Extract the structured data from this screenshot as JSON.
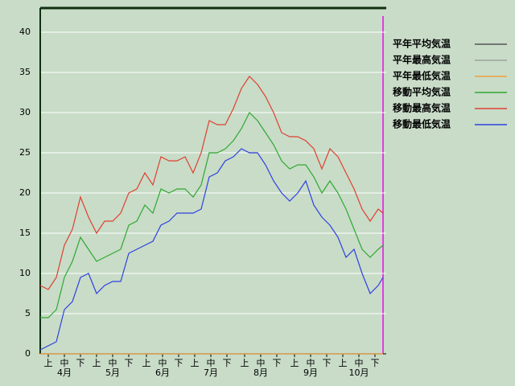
{
  "chart_data": {
    "type": "line",
    "x": [
      0,
      5,
      10,
      15,
      20,
      25,
      30,
      35,
      40,
      45,
      50,
      55,
      60,
      65,
      70,
      75,
      80,
      85,
      90,
      95,
      100,
      105,
      110,
      115,
      120,
      125,
      130,
      135,
      140,
      145,
      150,
      155,
      160,
      165,
      170,
      175,
      180,
      185,
      190,
      195,
      200,
      205,
      210,
      213
    ],
    "series": [
      {
        "name": "平年平均気温",
        "color": "#555555",
        "values": [
          0,
          0,
          0,
          0,
          0,
          0,
          0,
          0,
          0,
          0,
          0,
          0,
          0,
          0,
          0,
          0,
          0,
          0,
          0,
          0,
          0,
          0,
          0,
          0,
          0,
          0,
          0,
          0,
          0,
          0,
          0,
          0,
          0,
          0,
          0,
          0,
          0,
          0,
          0,
          0,
          0,
          0,
          0,
          0
        ]
      },
      {
        "name": "平年最高気温",
        "color": "#a0a0a0",
        "values": [
          0,
          0,
          0,
          0,
          0,
          0,
          0,
          0,
          0,
          0,
          0,
          0,
          0,
          0,
          0,
          0,
          0,
          0,
          0,
          0,
          0,
          0,
          0,
          0,
          0,
          0,
          0,
          0,
          0,
          0,
          0,
          0,
          0,
          0,
          0,
          0,
          0,
          0,
          0,
          0,
          0,
          0,
          0,
          0
        ]
      },
      {
        "name": "平年最低気温",
        "color": "#f0a040",
        "values": [
          0,
          0,
          0,
          0,
          0,
          0,
          0,
          0,
          0,
          0,
          0,
          0,
          0,
          0,
          0,
          0,
          0,
          0,
          0,
          0,
          0,
          0,
          0,
          0,
          0,
          0,
          0,
          0,
          0,
          0,
          0,
          0,
          0,
          0,
          0,
          0,
          0,
          0,
          0,
          0,
          0,
          0,
          0,
          0
        ]
      },
      {
        "name": "移動平均気温",
        "color": "#30a830",
        "values": [
          4.5,
          4.5,
          5.5,
          9.5,
          11.5,
          14.5,
          13,
          11.5,
          12,
          12.5,
          13,
          16,
          16.5,
          18.5,
          17.5,
          20.5,
          20,
          20.5,
          20.5,
          19.5,
          21,
          25,
          25,
          25.5,
          26.5,
          28,
          30,
          29,
          27.5,
          26,
          24,
          23,
          23.5,
          23.5,
          22,
          20,
          21.5,
          20,
          18,
          15.5,
          13,
          12,
          13,
          13.5
        ]
      },
      {
        "name": "移動最高気温",
        "color": "#e04030",
        "values": [
          8.5,
          8,
          9.5,
          13.5,
          15.5,
          19.5,
          17,
          15,
          16.5,
          16.5,
          17.5,
          20,
          20.5,
          22.5,
          21,
          24.5,
          24,
          24,
          24.5,
          22.5,
          25,
          29,
          28.5,
          28.5,
          30.5,
          33,
          34.5,
          33.5,
          32,
          30,
          27.5,
          27,
          27,
          26.5,
          25.5,
          23,
          25.5,
          24.5,
          22.5,
          20.5,
          18,
          16.5,
          18,
          17.5
        ]
      },
      {
        "name": "移動最低気温",
        "color": "#3040e0",
        "values": [
          0.5,
          1,
          1.5,
          5.5,
          6.5,
          9.5,
          10,
          7.5,
          8.5,
          9,
          9,
          12.5,
          13,
          13.5,
          14,
          16,
          16.5,
          17.5,
          17.5,
          17.5,
          18,
          22,
          22.5,
          24,
          24.5,
          25.5,
          25,
          25,
          23.5,
          21.5,
          20,
          19,
          20,
          21.5,
          18.5,
          17,
          16,
          14.5,
          12,
          13,
          10,
          7.5,
          8.5,
          9.5
        ]
      }
    ],
    "xlim": [
      0,
      215
    ],
    "xticks": [
      {
        "value": 5,
        "label": "上"
      },
      {
        "value": 15,
        "label": "中"
      },
      {
        "value": 25,
        "label": "下"
      },
      {
        "value": 35,
        "label": "上"
      },
      {
        "value": 45,
        "label": "中"
      },
      {
        "value": 55,
        "label": "下"
      },
      {
        "value": 66,
        "label": "上"
      },
      {
        "value": 76,
        "label": "中"
      },
      {
        "value": 86,
        "label": "下"
      },
      {
        "value": 96,
        "label": "上"
      },
      {
        "value": 106,
        "label": "中"
      },
      {
        "value": 116,
        "label": "下"
      },
      {
        "value": 127,
        "label": "上"
      },
      {
        "value": 137,
        "label": "中"
      },
      {
        "value": 147,
        "label": "下"
      },
      {
        "value": 158,
        "label": "上"
      },
      {
        "value": 168,
        "label": "中"
      },
      {
        "value": 178,
        "label": "下"
      },
      {
        "value": 188,
        "label": "上"
      },
      {
        "value": 198,
        "label": "中"
      },
      {
        "value": 208,
        "label": "下"
      }
    ],
    "month_labels": [
      {
        "value": 15,
        "label": "4月"
      },
      {
        "value": 45,
        "label": "5月"
      },
      {
        "value": 76,
        "label": "6月"
      },
      {
        "value": 106,
        "label": "7月"
      },
      {
        "value": 137,
        "label": "8月"
      },
      {
        "value": 168,
        "label": "9月"
      },
      {
        "value": 198,
        "label": "10月"
      }
    ],
    "ylim": [
      0,
      43
    ],
    "yticks": [
      0,
      5,
      10,
      15,
      20,
      25,
      30,
      35,
      40
    ],
    "grid": true,
    "legend": "right"
  }
}
